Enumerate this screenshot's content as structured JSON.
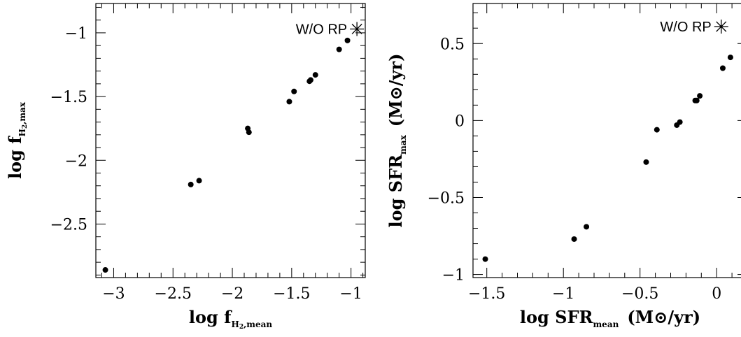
{
  "chart_data": [
    {
      "type": "scatter",
      "xlabel": "log f",
      "xlabel_subscript": "H",
      "xlabel_subsubscript": "2",
      "xlabel_subscript_tail": ",mean",
      "ylabel": "log f",
      "ylabel_subscript": "H",
      "ylabel_subsubscript": "2",
      "ylabel_subscript_tail": ",max",
      "xlim": [
        -3.15,
        -0.88
      ],
      "ylim": [
        -2.92,
        -0.77
      ],
      "x_ticks": [
        -3,
        -2.5,
        -2,
        -1.5,
        -1
      ],
      "x_tick_labels": [
        "−3",
        "−2.5",
        "−2",
        "−1.5",
        "−1"
      ],
      "y_ticks": [
        -2.5,
        -2,
        -1.5,
        -1
      ],
      "y_tick_labels": [
        "−2.5",
        "−2",
        "−1.5",
        "−1"
      ],
      "grid": false,
      "points": [
        {
          "x": -3.07,
          "y": -2.86
        },
        {
          "x": -2.35,
          "y": -2.19
        },
        {
          "x": -2.28,
          "y": -2.16
        },
        {
          "x": -1.87,
          "y": -1.75
        },
        {
          "x": -1.86,
          "y": -1.78
        },
        {
          "x": -1.52,
          "y": -1.54
        },
        {
          "x": -1.48,
          "y": -1.46
        },
        {
          "x": -1.35,
          "y": -1.38
        },
        {
          "x": -1.34,
          "y": -1.37
        },
        {
          "x": -1.3,
          "y": -1.33
        },
        {
          "x": -1.1,
          "y": -1.13
        },
        {
          "x": -1.03,
          "y": -1.06
        }
      ],
      "special_point": {
        "x": -0.95,
        "y": -0.97,
        "marker": "asterisk",
        "label": "W/O RP"
      }
    },
    {
      "type": "scatter",
      "xlabel": "log SFR",
      "xlabel_subscript": "mean",
      "xlabel_unit": "(M⊙/yr)",
      "ylabel": "log SFR",
      "ylabel_subscript": "max",
      "ylabel_unit": "(M⊙/yr)",
      "xlim": [
        -1.59,
        0.2
      ],
      "ylim": [
        -1.02,
        0.76
      ],
      "x_ticks": [
        -1.5,
        -1,
        -0.5,
        0
      ],
      "x_tick_labels": [
        "−1.5",
        "−1",
        "−0.5",
        "0"
      ],
      "y_ticks": [
        -1,
        -0.5,
        0,
        0.5
      ],
      "y_tick_labels": [
        "−1",
        "−0.5",
        "0",
        "0.5"
      ],
      "grid": false,
      "points": [
        {
          "x": -1.51,
          "y": -0.9
        },
        {
          "x": -0.93,
          "y": -0.77
        },
        {
          "x": -0.85,
          "y": -0.69
        },
        {
          "x": -0.46,
          "y": -0.27
        },
        {
          "x": -0.39,
          "y": -0.06
        },
        {
          "x": -0.26,
          "y": -0.03
        },
        {
          "x": -0.24,
          "y": -0.01
        },
        {
          "x": -0.14,
          "y": 0.13
        },
        {
          "x": -0.13,
          "y": 0.13
        },
        {
          "x": -0.11,
          "y": 0.16
        },
        {
          "x": 0.04,
          "y": 0.34
        },
        {
          "x": 0.09,
          "y": 0.41
        }
      ],
      "special_point": {
        "x": 0.03,
        "y": 0.61,
        "marker": "asterisk",
        "label": "W/O RP"
      }
    }
  ]
}
